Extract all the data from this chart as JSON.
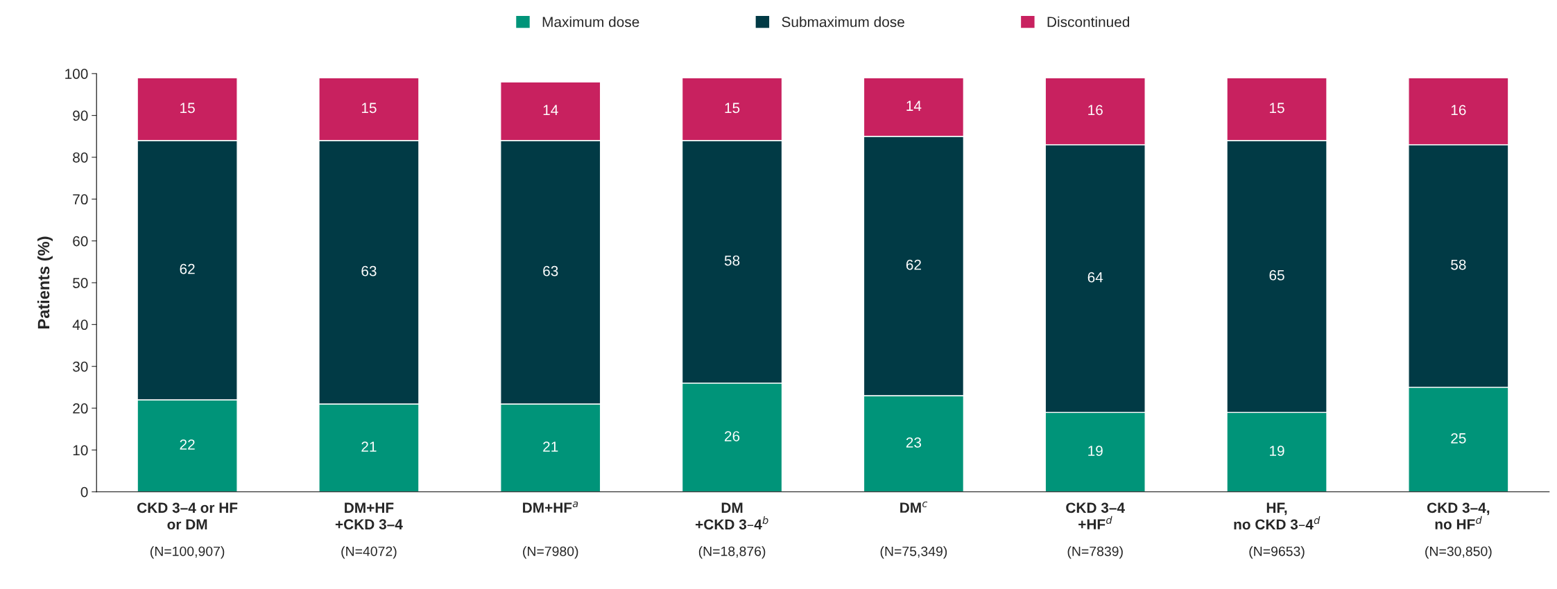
{
  "chart_data": {
    "type": "bar",
    "stacked": true,
    "ylabel": "Patients (%)",
    "categories": [
      "CKD 3–4 or HF\nor DM\n(N=100,907)",
      "DM+HF\n+CKD 3–4\n(N=4072)",
      "DM+HF$^{a}$\n\n(N=7980)",
      "DM\n+CKD 3–4$^{b}$\n(N=18,876)",
      "DM$^{c}$\n\n(N=75,349)",
      "CKD 3–4\n+HF$^{d}$\n(N=7839)",
      "HF,\nno CKD 3–4$^{d}$\n(N=9653)",
      "CKD 3–4,\nno HF$^{d}$\n(N=30,850)"
    ],
    "series": [
      {
        "name": "Maximum dose",
        "color": "#009479",
        "values": [
          22,
          21,
          21,
          26,
          23,
          19,
          19,
          25
        ]
      },
      {
        "name": "Submaximum dose",
        "color": "#013a45",
        "values": [
          62,
          63,
          63,
          58,
          62,
          64,
          65,
          58
        ]
      },
      {
        "name": "Discontinued",
        "color": "#c8215f",
        "values": [
          15,
          15,
          14,
          15,
          14,
          16,
          15,
          16
        ]
      }
    ],
    "ylim": [
      0,
      100
    ],
    "yticks": [
      0,
      10,
      20,
      30,
      40,
      50,
      60,
      70,
      80,
      90,
      100
    ],
    "data_labels": true,
    "grid": false,
    "legend": "top"
  }
}
